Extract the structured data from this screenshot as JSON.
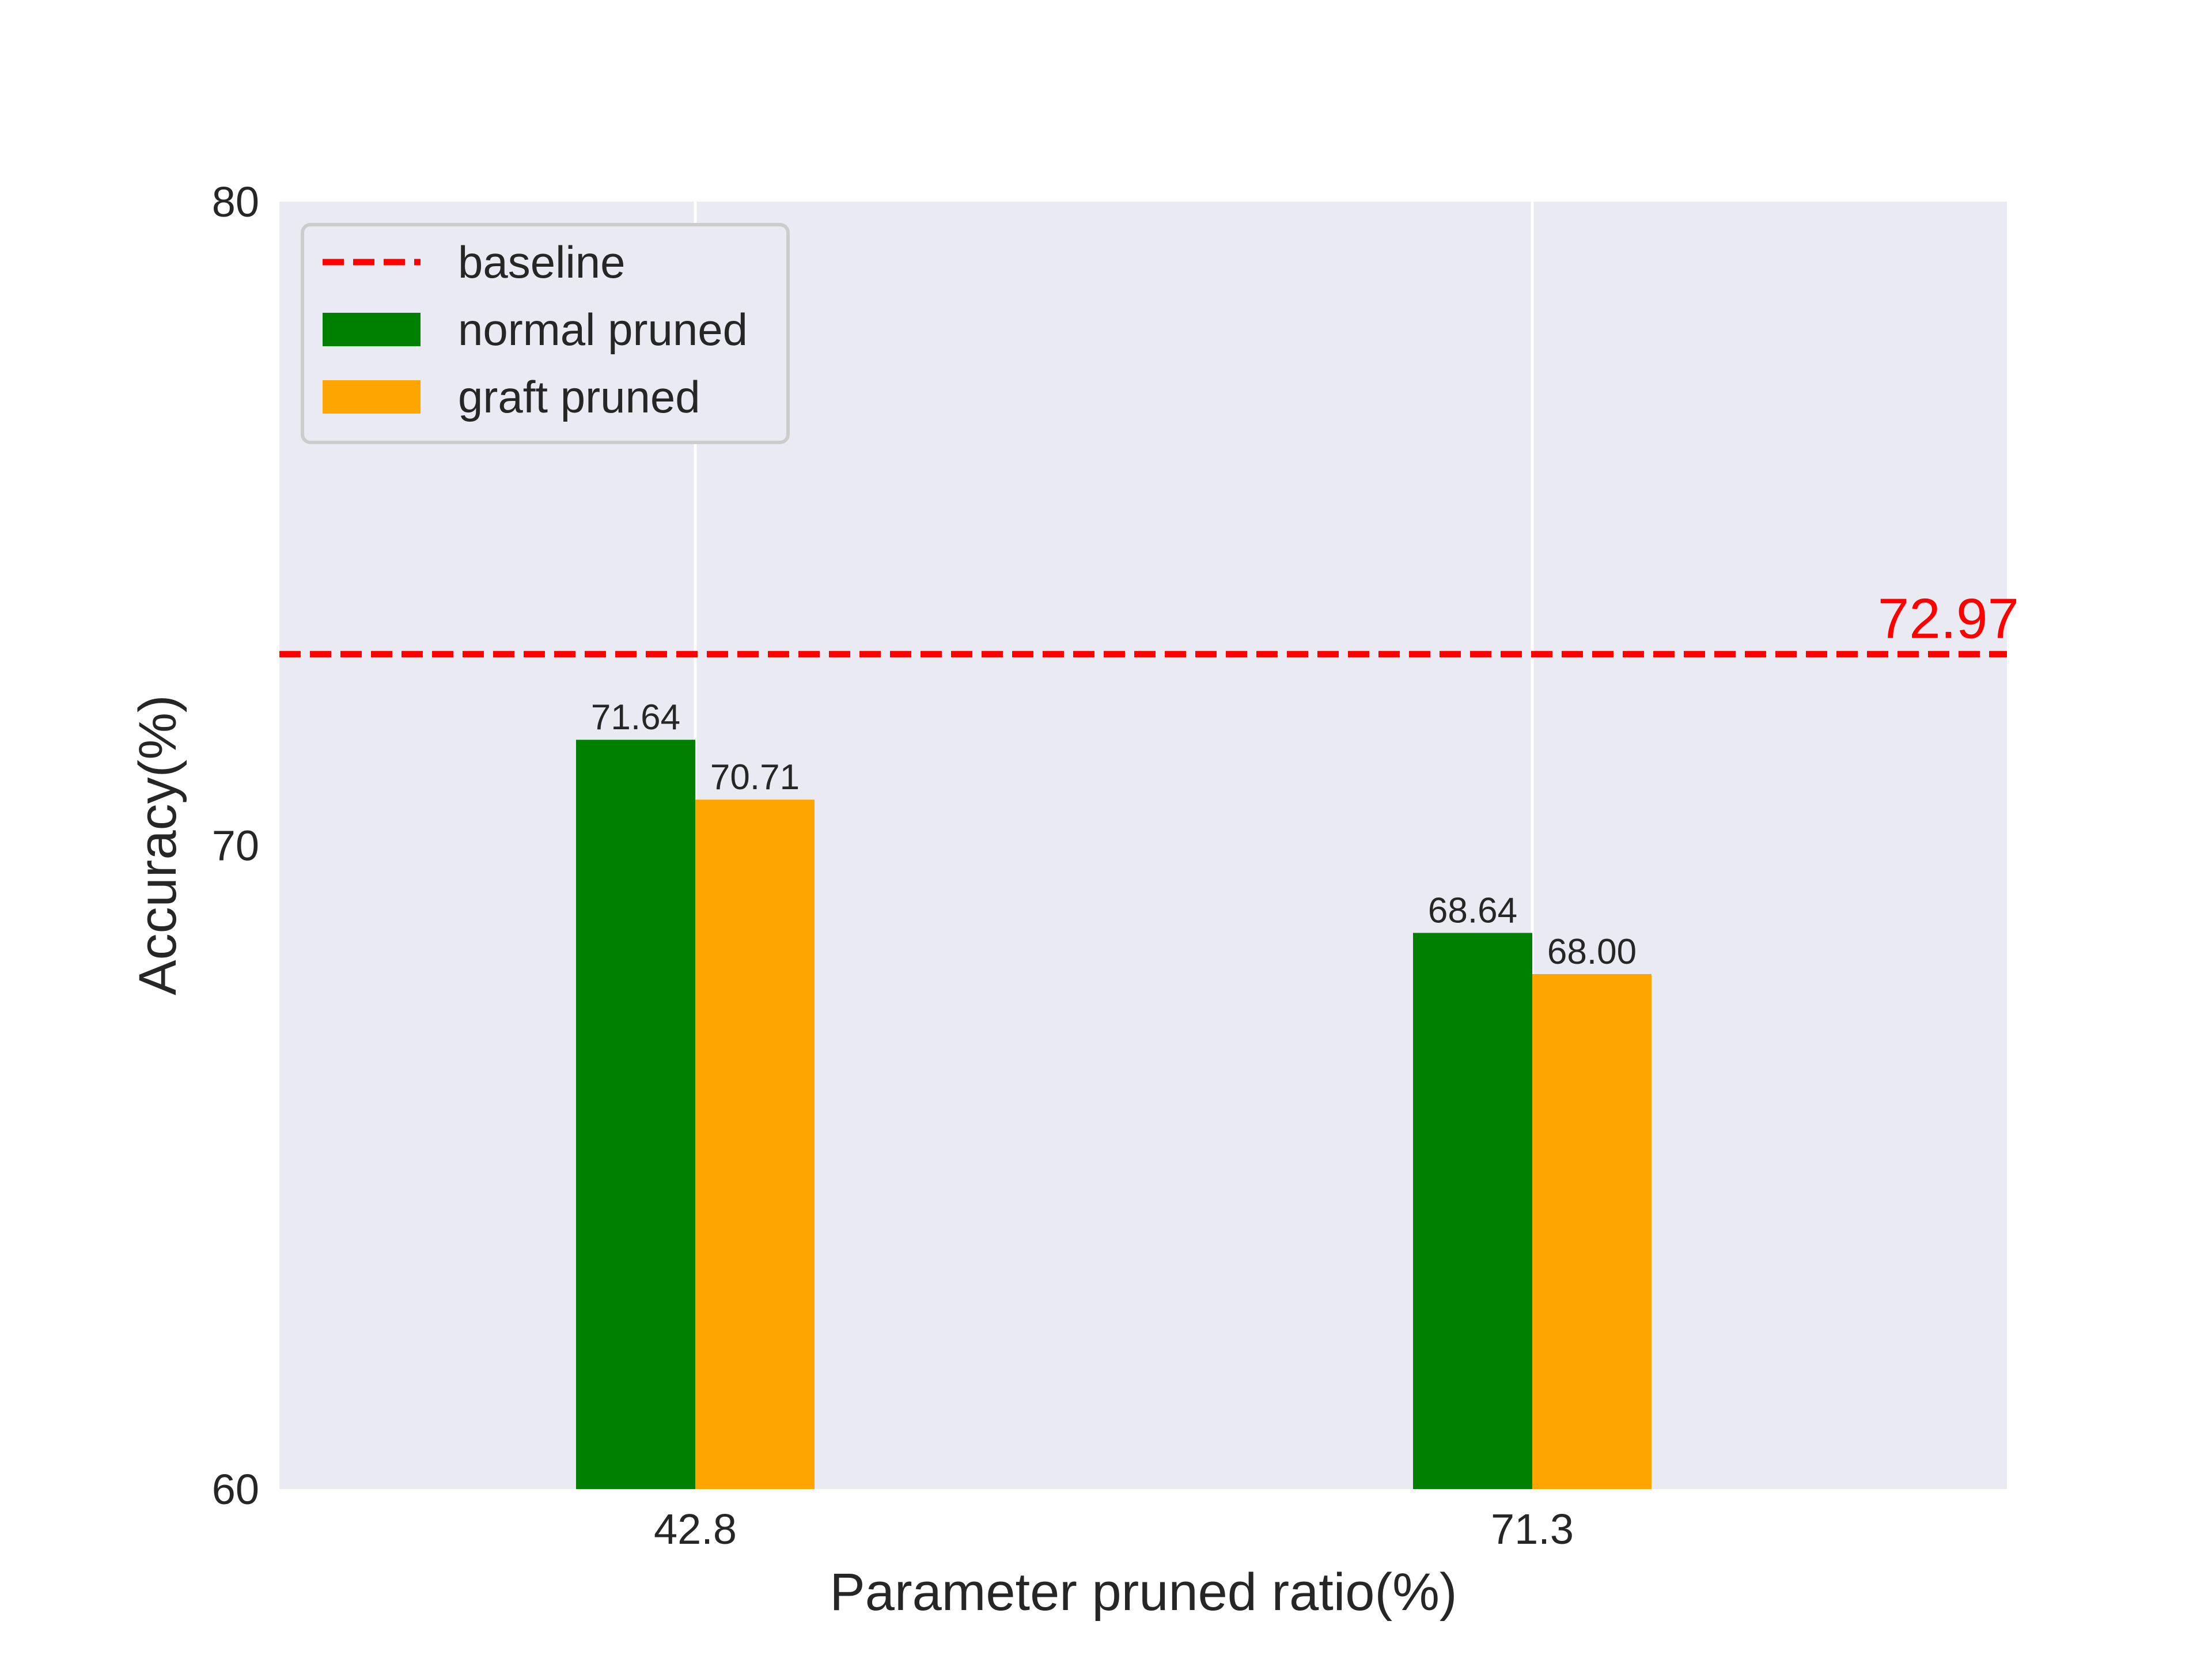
{
  "chart_data": {
    "type": "bar",
    "title": "",
    "xlabel": "Parameter pruned ratio(%)",
    "ylabel": "Accuracy(%)",
    "categories": [
      "42.8",
      "71.3"
    ],
    "series": [
      {
        "name": "normal pruned",
        "values": [
          71.64,
          68.64
        ],
        "labels": [
          "71.64",
          "68.64"
        ],
        "color": "#008000"
      },
      {
        "name": "graft pruned",
        "values": [
          70.71,
          68.0
        ],
        "labels": [
          "70.71",
          "68.00"
        ],
        "color": "#ffa500"
      }
    ],
    "reference_line": {
      "name": "baseline",
      "value": 72.97,
      "label": "72.97",
      "color": "#ff0000",
      "style": "dashed"
    },
    "ylim": [
      60,
      80
    ],
    "yticks": [
      "60",
      "70",
      "80"
    ],
    "grid": "vertical",
    "legend": "top-left",
    "background": "#eaeaf2"
  }
}
